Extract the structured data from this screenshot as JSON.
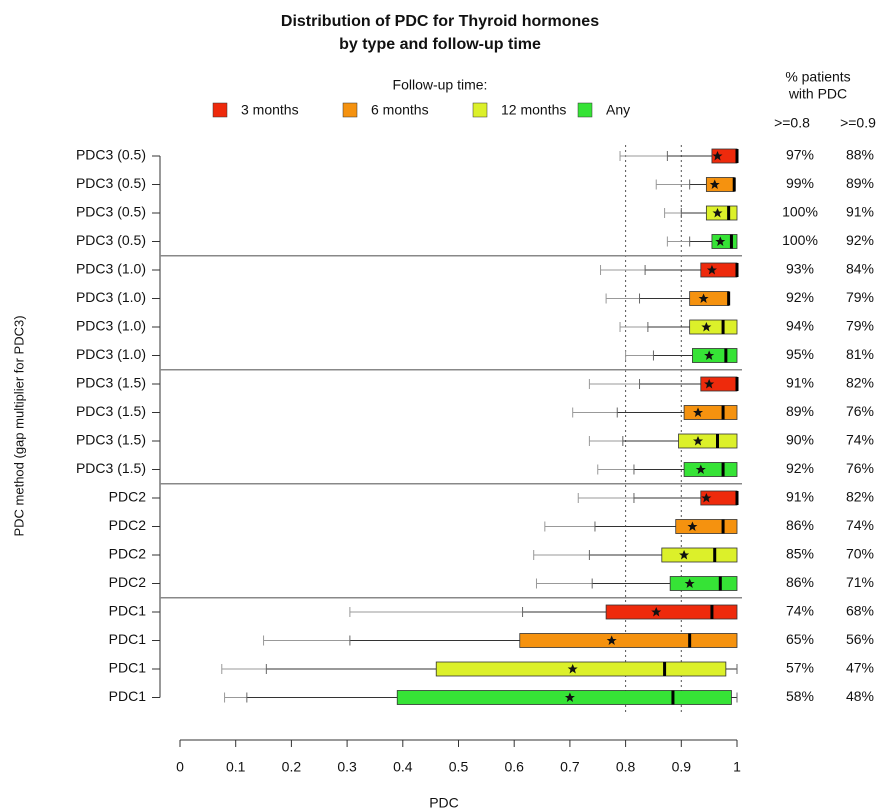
{
  "chart_data": {
    "type": "box",
    "title": [
      "Distribution of PDC for Thyroid hormones",
      "by type and follow-up time"
    ],
    "legend_title": "Follow-up time:",
    "xlabel": "PDC",
    "ylabel": "PDC method (gap multiplier for PDC3)",
    "xlim": [
      0,
      1
    ],
    "xticks": [
      0,
      0.1,
      0.2,
      0.3,
      0.4,
      0.5,
      0.6,
      0.7,
      0.8,
      0.9,
      1
    ],
    "reference_lines": [
      0.8,
      0.9
    ],
    "categories": [
      "PDC3 (0.5)",
      "PDC3 (1.0)",
      "PDC3 (1.5)",
      "PDC2",
      "PDC1"
    ],
    "table_header": [
      "% patients",
      "with PDC"
    ],
    "table_columns": [
      ">=0.8",
      ">=0.9"
    ],
    "series": [
      {
        "name": "3 months",
        "color": "#ee2a0c",
        "values": [
          {
            "outer_low": 0.79,
            "whisker_low": 0.875,
            "q1": 0.955,
            "median": 1.0,
            "q3": 1.0,
            "mean": 0.965,
            "pct": [
              "97%",
              "88%"
            ]
          },
          {
            "outer_low": 0.755,
            "whisker_low": 0.835,
            "q1": 0.935,
            "median": 1.0,
            "q3": 1.0,
            "mean": 0.955,
            "pct": [
              "93%",
              "84%"
            ]
          },
          {
            "outer_low": 0.735,
            "whisker_low": 0.825,
            "q1": 0.935,
            "median": 1.0,
            "q3": 1.0,
            "mean": 0.95,
            "pct": [
              "91%",
              "82%"
            ]
          },
          {
            "outer_low": 0.715,
            "whisker_low": 0.815,
            "q1": 0.935,
            "median": 1.0,
            "q3": 1.0,
            "mean": 0.945,
            "pct": [
              "91%",
              "82%"
            ]
          },
          {
            "outer_low": 0.305,
            "whisker_low": 0.615,
            "q1": 0.765,
            "median": 0.955,
            "q3": 1.0,
            "mean": 0.855,
            "pct": [
              "74%",
              "68%"
            ]
          }
        ]
      },
      {
        "name": "6 months",
        "color": "#f5920f",
        "values": [
          {
            "outer_low": 0.855,
            "whisker_low": 0.915,
            "q1": 0.945,
            "median": 0.995,
            "q3": 0.995,
            "mean": 0.96,
            "pct": [
              "99%",
              "89%"
            ]
          },
          {
            "outer_low": 0.765,
            "whisker_low": 0.825,
            "q1": 0.915,
            "median": 0.985,
            "q3": 0.985,
            "mean": 0.94,
            "pct": [
              "92%",
              "79%"
            ]
          },
          {
            "outer_low": 0.705,
            "whisker_low": 0.785,
            "q1": 0.905,
            "median": 0.975,
            "q3": 1.0,
            "mean": 0.93,
            "pct": [
              "89%",
              "76%"
            ]
          },
          {
            "outer_low": 0.655,
            "whisker_low": 0.745,
            "q1": 0.89,
            "median": 0.975,
            "q3": 1.0,
            "mean": 0.92,
            "pct": [
              "86%",
              "74%"
            ]
          },
          {
            "outer_low": 0.15,
            "whisker_low": 0.305,
            "q1": 0.61,
            "median": 0.915,
            "q3": 1.0,
            "mean": 0.775,
            "pct": [
              "65%",
              "56%"
            ]
          }
        ]
      },
      {
        "name": "12 months",
        "color": "#dcf02a",
        "values": [
          {
            "outer_low": 0.87,
            "whisker_low": 0.9,
            "q1": 0.945,
            "median": 0.985,
            "q3": 1.0,
            "mean": 0.965,
            "pct": [
              "100%",
              "91%"
            ]
          },
          {
            "outer_low": 0.79,
            "whisker_low": 0.84,
            "q1": 0.915,
            "median": 0.975,
            "q3": 1.0,
            "mean": 0.945,
            "pct": [
              "94%",
              "79%"
            ]
          },
          {
            "outer_low": 0.735,
            "whisker_low": 0.795,
            "q1": 0.895,
            "median": 0.965,
            "q3": 1.0,
            "mean": 0.93,
            "pct": [
              "90%",
              "74%"
            ]
          },
          {
            "outer_low": 0.635,
            "whisker_low": 0.735,
            "q1": 0.865,
            "median": 0.96,
            "q3": 1.0,
            "mean": 0.905,
            "pct": [
              "85%",
              "70%"
            ]
          },
          {
            "outer_low": 0.075,
            "whisker_low": 0.155,
            "q1": 0.46,
            "median": 0.87,
            "q3": 0.98,
            "mean": 0.705,
            "whisker_high": 1.0,
            "pct": [
              "57%",
              "47%"
            ]
          }
        ]
      },
      {
        "name": "Any",
        "color": "#36e336",
        "values": [
          {
            "outer_low": 0.875,
            "whisker_low": 0.915,
            "q1": 0.955,
            "median": 0.99,
            "q3": 1.0,
            "mean": 0.97,
            "pct": [
              "100%",
              "92%"
            ]
          },
          {
            "outer_low": 0.8,
            "whisker_low": 0.85,
            "q1": 0.92,
            "median": 0.98,
            "q3": 1.0,
            "mean": 0.95,
            "pct": [
              "95%",
              "81%"
            ]
          },
          {
            "outer_low": 0.75,
            "whisker_low": 0.815,
            "q1": 0.905,
            "median": 0.975,
            "q3": 1.0,
            "mean": 0.935,
            "pct": [
              "92%",
              "76%"
            ]
          },
          {
            "outer_low": 0.64,
            "whisker_low": 0.74,
            "q1": 0.88,
            "median": 0.97,
            "q3": 1.0,
            "mean": 0.915,
            "pct": [
              "86%",
              "71%"
            ]
          },
          {
            "outer_low": 0.08,
            "whisker_low": 0.12,
            "q1": 0.39,
            "median": 0.885,
            "q3": 0.99,
            "mean": 0.7,
            "whisker_high": 1.0,
            "pct": [
              "58%",
              "48%"
            ]
          }
        ]
      }
    ]
  }
}
